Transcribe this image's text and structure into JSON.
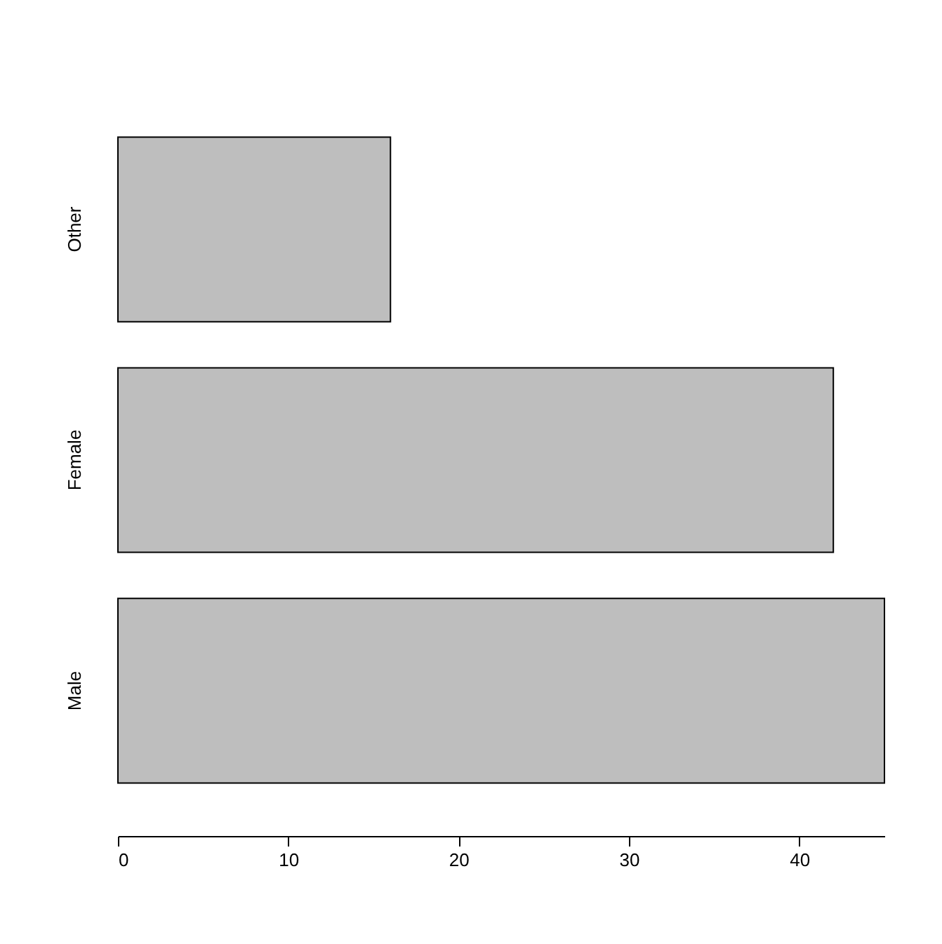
{
  "chart_data": {
    "type": "bar",
    "orientation": "horizontal",
    "categories": [
      "Other",
      "Female",
      "Male"
    ],
    "values": [
      16,
      42,
      45
    ],
    "color": "#bebebe",
    "xlim": [
      0,
      45
    ],
    "xticks": [
      0,
      10,
      20,
      30,
      40
    ],
    "grid": false
  }
}
